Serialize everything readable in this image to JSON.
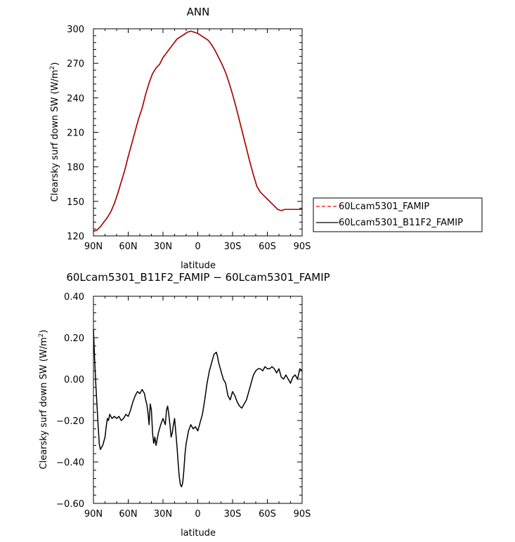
{
  "chart_data": [
    {
      "type": "line",
      "title": "ANN",
      "xlabel": "latitude",
      "ylabel_main": "Clearsky surf down SW (W/m",
      "ylabel_sup": "2",
      "ylabel_close": ")",
      "xlim": [
        90,
        -90
      ],
      "ylim": [
        120,
        300
      ],
      "x_ticks": [
        90,
        60,
        30,
        0,
        -30,
        -60,
        -90
      ],
      "x_tick_labels": [
        "90N",
        "60N",
        "30N",
        "0",
        "30S",
        "60S",
        "90S"
      ],
      "y_ticks": [
        120,
        150,
        180,
        210,
        240,
        270,
        300
      ],
      "y_tick_labels": [
        "120",
        "150",
        "180",
        "210",
        "240",
        "270",
        "300"
      ],
      "legend": "right",
      "series": [
        {
          "name": "60Lcam5301_FAMIP",
          "color": "#ff0000",
          "dash": "dashed",
          "x": [
            90,
            87,
            84,
            81,
            78,
            75,
            72,
            69,
            66,
            63,
            60,
            57,
            54,
            51,
            48,
            45,
            42,
            39,
            36,
            33,
            30,
            27,
            24,
            21,
            18,
            15,
            12,
            9,
            6,
            3,
            0,
            -3,
            -6,
            -9,
            -12,
            -15,
            -18,
            -21,
            -24,
            -27,
            -30,
            -33,
            -36,
            -39,
            -42,
            -45,
            -48,
            -51,
            -54,
            -57,
            -60,
            -63,
            -66,
            -69,
            -72,
            -75,
            -78,
            -81,
            -84,
            -87,
            -90
          ],
          "y": [
            124,
            125,
            128,
            132,
            136,
            141,
            148,
            157,
            167,
            177,
            189,
            200,
            211,
            222,
            231,
            243,
            253,
            261,
            266,
            269,
            275,
            279,
            283,
            287,
            291,
            293,
            295,
            297,
            298,
            297,
            296,
            294,
            292,
            290,
            286,
            281,
            275,
            269,
            262,
            253,
            243,
            232,
            220,
            208,
            196,
            184,
            173,
            163,
            158,
            155,
            152,
            149,
            146,
            143,
            142,
            143,
            143,
            143,
            143,
            143,
            143
          ]
        },
        {
          "name": "60Lcam5301_B11F2_FAMIP",
          "color": "#000000",
          "dash": "solid",
          "x": [
            90,
            87,
            84,
            81,
            78,
            75,
            72,
            69,
            66,
            63,
            60,
            57,
            54,
            51,
            48,
            45,
            42,
            39,
            36,
            33,
            30,
            27,
            24,
            21,
            18,
            15,
            12,
            9,
            6,
            3,
            0,
            -3,
            -6,
            -9,
            -12,
            -15,
            -18,
            -21,
            -24,
            -27,
            -30,
            -33,
            -36,
            -39,
            -42,
            -45,
            -48,
            -51,
            -54,
            -57,
            -60,
            -63,
            -66,
            -69,
            -72,
            -75,
            -78,
            -81,
            -84,
            -87,
            -90
          ],
          "y": [
            124,
            125,
            128,
            132,
            136,
            141,
            148,
            157,
            167,
            177,
            189,
            200,
            211,
            222,
            231,
            243,
            253,
            261,
            266,
            269,
            275,
            279,
            283,
            287,
            291,
            293,
            295,
            297,
            298,
            297,
            296,
            294,
            292,
            290,
            286,
            281,
            275,
            269,
            262,
            253,
            243,
            232,
            220,
            208,
            196,
            184,
            173,
            163,
            158,
            155,
            152,
            149,
            146,
            143,
            142,
            143,
            143,
            143,
            143,
            143,
            143
          ]
        }
      ]
    },
    {
      "type": "line",
      "title": "60Lcam5301_B11F2_FAMIP − 60Lcam5301_FAMIP",
      "xlabel": "latitude",
      "ylabel_main": "Clearsky surf down SW (W/m",
      "ylabel_sup": "2",
      "ylabel_close": ")",
      "xlim": [
        90,
        -90
      ],
      "ylim": [
        -0.6,
        0.4
      ],
      "x_ticks": [
        90,
        60,
        30,
        0,
        -30,
        -60,
        -90
      ],
      "x_tick_labels": [
        "90N",
        "60N",
        "30N",
        "0",
        "30S",
        "60S",
        "90S"
      ],
      "y_ticks": [
        -0.6,
        -0.4,
        -0.2,
        0.0,
        0.2,
        0.4
      ],
      "y_tick_labels": [
        "−0.60",
        "−0.40",
        "−0.20",
        "0.00",
        "0.20",
        "0.40"
      ],
      "series": [
        {
          "name": "",
          "color": "#000000",
          "dash": "solid",
          "x": [
            90,
            89,
            88,
            87,
            86,
            85,
            84,
            83,
            82,
            81,
            80,
            79,
            78,
            77,
            76,
            75,
            74,
            72,
            70,
            68,
            66,
            64,
            62,
            60,
            58,
            56,
            54,
            52,
            50,
            48,
            46,
            45,
            44,
            43,
            42,
            41,
            40,
            39,
            38,
            37,
            36,
            34,
            32,
            30,
            28,
            27,
            26,
            25,
            24,
            23,
            22,
            21,
            20,
            18,
            17,
            16,
            15,
            14,
            13,
            12,
            11,
            10,
            8,
            6,
            4,
            2,
            0,
            -2,
            -4,
            -6,
            -8,
            -10,
            -12,
            -14,
            -16,
            -17,
            -18,
            -20,
            -22,
            -24,
            -26,
            -28,
            -30,
            -32,
            -34,
            -36,
            -38,
            -40,
            -42,
            -44,
            -46,
            -48,
            -50,
            -52,
            -54,
            -56,
            -58,
            -60,
            -62,
            -64,
            -66,
            -68,
            -70,
            -72,
            -74,
            -76,
            -78,
            -80,
            -82,
            -84,
            -86,
            -88,
            -90
          ],
          "y": [
            0.24,
            0.1,
            -0.02,
            -0.12,
            -0.22,
            -0.31,
            -0.34,
            -0.33,
            -0.32,
            -0.3,
            -0.28,
            -0.23,
            -0.19,
            -0.2,
            -0.17,
            -0.18,
            -0.19,
            -0.18,
            -0.19,
            -0.18,
            -0.2,
            -0.19,
            -0.17,
            -0.18,
            -0.15,
            -0.11,
            -0.08,
            -0.06,
            -0.07,
            -0.05,
            -0.07,
            -0.1,
            -0.12,
            -0.16,
            -0.22,
            -0.12,
            -0.15,
            -0.26,
            -0.31,
            -0.28,
            -0.32,
            -0.26,
            -0.22,
            -0.19,
            -0.22,
            -0.15,
            -0.13,
            -0.17,
            -0.22,
            -0.28,
            -0.26,
            -0.22,
            -0.19,
            -0.32,
            -0.4,
            -0.47,
            -0.51,
            -0.52,
            -0.5,
            -0.44,
            -0.36,
            -0.31,
            -0.25,
            -0.22,
            -0.24,
            -0.23,
            -0.25,
            -0.21,
            -0.17,
            -0.1,
            -0.02,
            0.04,
            0.08,
            0.12,
            0.13,
            0.11,
            0.08,
            0.04,
            0.0,
            -0.02,
            -0.08,
            -0.1,
            -0.06,
            -0.08,
            -0.11,
            -0.13,
            -0.14,
            -0.12,
            -0.1,
            -0.06,
            -0.02,
            0.02,
            0.04,
            0.05,
            0.05,
            0.04,
            0.06,
            0.05,
            0.05,
            0.06,
            0.05,
            0.03,
            0.05,
            0.01,
            0.0,
            0.02,
            0.0,
            -0.02,
            0.01,
            0.02,
            0.0,
            0.05,
            0.04
          ]
        }
      ]
    }
  ]
}
